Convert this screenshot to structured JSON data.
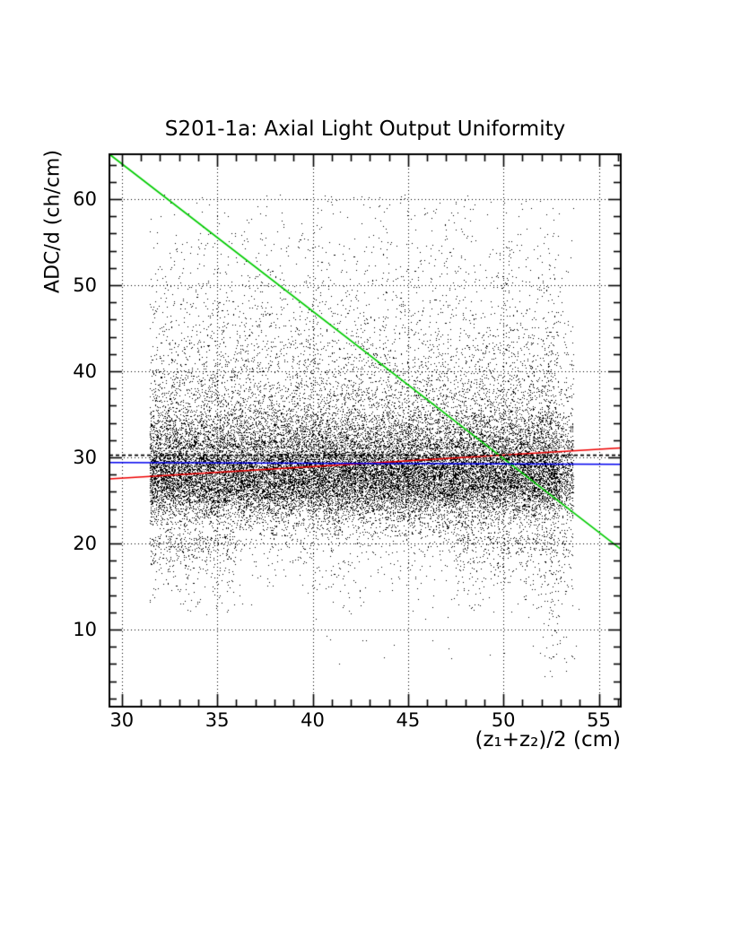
{
  "page": {
    "background": "#ffffff"
  },
  "title": "S201-1a: Axial Light Output Uniformity",
  "x_axis": {
    "title": "(z₁+z₂)/2 (cm)"
  },
  "y_axis": {
    "title": "ADC/d (ch/cm)"
  },
  "chart_data": {
    "type": "scatter",
    "title": "S201-1a: Axial Light Output Uniformity",
    "xlabel": "(z₁+z₂)/2 (cm)",
    "ylabel": "ADC/d (ch/cm)",
    "xlim": [
      29.35,
      56.15
    ],
    "ylim": [
      1.05,
      65.2
    ],
    "x_ticks": [
      30,
      35,
      40,
      45,
      50,
      55
    ],
    "y_ticks": [
      10,
      20,
      30,
      40,
      50,
      60
    ],
    "x_minor_step": 1,
    "y_minor_step": 2,
    "grid": {
      "show": true,
      "style": "dotted",
      "color": "#000000"
    },
    "frame_color": "#000000",
    "point_color": "#000000",
    "legend": "none",
    "scatter": {
      "n_points": 30000,
      "seed": 1234567,
      "x_range": [
        31.45,
        53.65
      ],
      "right_taper": {
        "start": 52.9,
        "prob": 0.45
      },
      "components": [
        {
          "name": "core-band",
          "frac": 0.507,
          "dist": "normal",
          "mean": 27.4,
          "sigma": 2.2,
          "clip": [
            20.9,
            33.5
          ]
        },
        {
          "name": "peak-band",
          "frac": 0.06,
          "dist": "normal",
          "mean": 29.4,
          "sigma": 0.9,
          "clip": [
            27.2,
            31.6
          ]
        },
        {
          "name": "upper-tail",
          "frac": 0.26,
          "dist": "exp-above",
          "base": 31.0,
          "tau": 7.2,
          "max": 60.6
        },
        {
          "name": "mid-spread",
          "frac": 0.13,
          "dist": "uniform",
          "range": [
            20.9,
            35.0
          ]
        },
        {
          "name": "lower-tail",
          "frac": 0.04,
          "dist": "exp-below",
          "base": 20.9,
          "tau": 3.0,
          "min": 11.8,
          "x_zones": [
            [
              31.45,
              36.0,
              0.35
            ],
            [
              36.0,
              47.5,
              0.25
            ],
            [
              47.5,
              53.65,
              0.4
            ]
          ]
        },
        {
          "name": "bottom-right-streak",
          "frac": 0.002,
          "dist": "streak",
          "x_center": 52.3,
          "x_sigma": 0.45,
          "y_range": [
            4.0,
            19.5
          ]
        },
        {
          "name": "sparse-low",
          "frac": 0.001,
          "dist": "uniform2",
          "x_range": [
            40.0,
            54.0
          ],
          "y_range": [
            6.0,
            16.0
          ]
        }
      ]
    },
    "fit_lines": [
      {
        "name": "fit-line-declining",
        "color": "#00cc00",
        "style": "solid",
        "points": [
          [
            29.35,
            65.2
          ],
          [
            56.15,
            19.35
          ]
        ]
      },
      {
        "name": "fit-line-rising",
        "color": "#ee0000",
        "style": "solid",
        "points": [
          [
            29.35,
            27.5
          ],
          [
            56.15,
            31.1
          ]
        ]
      },
      {
        "name": "fit-line-flat-blue",
        "color": "#0000ee",
        "style": "solid",
        "points": [
          [
            29.35,
            29.4
          ],
          [
            56.15,
            29.2
          ]
        ]
      },
      {
        "name": "fit-line-flat-black",
        "color": "#000000",
        "style": "dashed",
        "points": [
          [
            29.35,
            30.25
          ],
          [
            56.15,
            30.25
          ]
        ]
      }
    ]
  }
}
